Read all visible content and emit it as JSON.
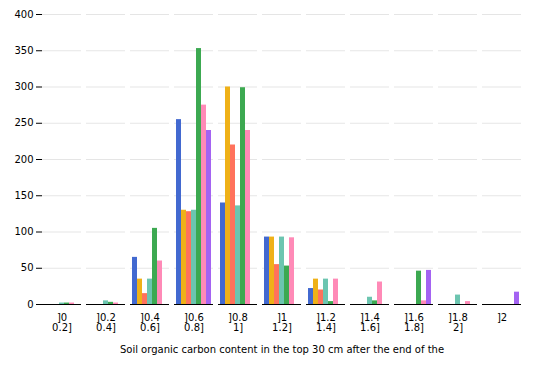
{
  "chart_data": {
    "type": "bar",
    "xlabel": "Soil organic carbon content in the top 30 cm after the end of the",
    "categories": [
      "]0\n0.2]",
      "]0.2\n0.4]",
      "]0.4\n0.6]",
      "]0.6\n0.8]",
      "]0.8\n1]",
      "]1\n1.2]",
      "]1.2\n1.4]",
      "]1.4\n1.6]",
      "]1.6\n1.8]",
      "]1.8\n2]",
      "]2"
    ],
    "series": [
      {
        "values": [
          0,
          0,
          65,
          255,
          140,
          93,
          22,
          0,
          0,
          0,
          0
        ]
      },
      {
        "values": [
          0,
          0,
          35,
          130,
          300,
          93,
          35,
          0,
          0,
          0,
          0
        ]
      },
      {
        "values": [
          0,
          0,
          15,
          128,
          220,
          55,
          20,
          0,
          0,
          0,
          0
        ]
      },
      {
        "values": [
          2,
          5,
          35,
          130,
          136,
          93,
          35,
          10,
          0,
          13,
          0
        ]
      },
      {
        "values": [
          2,
          3,
          105,
          353,
          299,
          53,
          4,
          5,
          46,
          0,
          0
        ]
      },
      {
        "values": [
          2,
          2,
          60,
          275,
          240,
          92,
          35,
          31,
          5,
          4,
          0
        ]
      },
      {
        "values": [
          0,
          0,
          0,
          240,
          0,
          0,
          0,
          0,
          47,
          0,
          17
        ]
      }
    ],
    "ylim": [
      0,
      400
    ],
    "yticks": [
      0,
      50,
      100,
      150,
      200,
      250,
      300,
      350,
      400
    ],
    "grid": true
  }
}
